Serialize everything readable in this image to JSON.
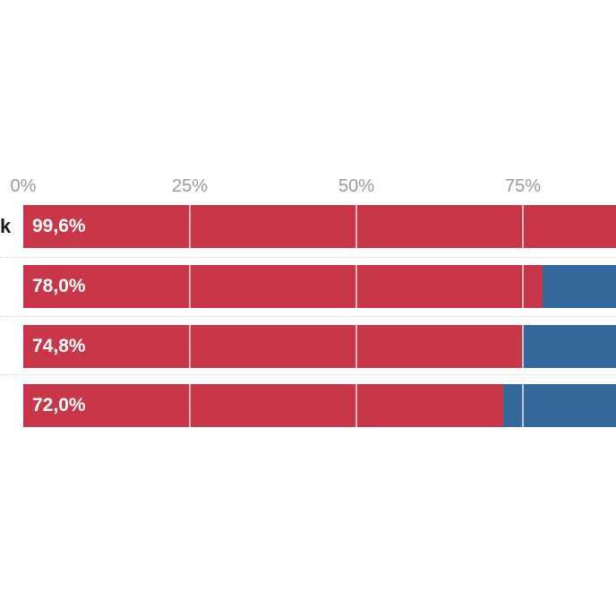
{
  "chart_data": {
    "type": "bar",
    "orientation": "horizontal",
    "stacked": true,
    "title": "",
    "xlabel": "",
    "ylabel": "",
    "legend": "none",
    "grid": "vertical white lines over bars at 25/50/75",
    "categories": [
      "k",
      "",
      "",
      ""
    ],
    "series": [
      {
        "name": "primary",
        "color": "#c83749",
        "values": [
          99.6,
          78.0,
          74.8,
          72.0
        ]
      },
      {
        "name": "secondary",
        "color": "#34689b",
        "values": [
          0.4,
          22.0,
          25.2,
          28.0
        ]
      }
    ],
    "value_labels": [
      "99,6%",
      "78,0%",
      "74,8%",
      "72,0%"
    ],
    "x_ticks": [
      {
        "label": "0%",
        "value": 0
      },
      {
        "label": "25%",
        "value": 25
      },
      {
        "label": "50%",
        "value": 50
      },
      {
        "label": "75%",
        "value": 75
      }
    ],
    "xlim_visible": [
      0,
      89
    ],
    "note": "chart cropped: left category labels and right bar ends extend beyond image edges"
  },
  "colors": {
    "background": "#ffffff",
    "bar_primary": "#c83749",
    "bar_secondary": "#34689b",
    "axis_tick_label": "#9a9a9a",
    "category_label": "#1c1c1e",
    "value_label": "#ffffff",
    "row_separator": "#d4d4d4",
    "gridline": "rgba(255,255,255,0.65)"
  }
}
